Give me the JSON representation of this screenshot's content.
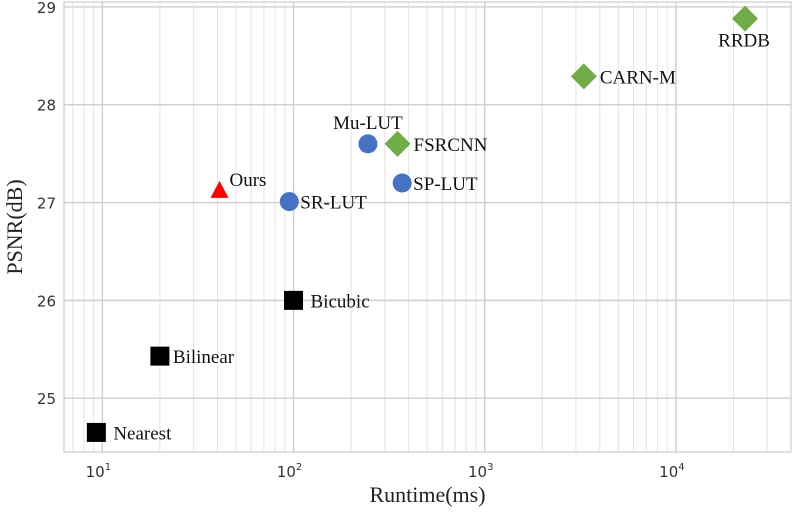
{
  "chart_data": {
    "type": "scatter",
    "title": "",
    "xlabel": "Runtime(ms)",
    "ylabel": "PSNR(dB)",
    "x_scale": "log",
    "xlim": [
      6.3,
      40000
    ],
    "ylim": [
      24.45,
      29.05
    ],
    "grid": true,
    "x_ticks": [
      {
        "base": "10",
        "exp": "1",
        "value": 10
      },
      {
        "base": "10",
        "exp": "2",
        "value": 100
      },
      {
        "base": "10",
        "exp": "3",
        "value": 1000
      },
      {
        "base": "10",
        "exp": "4",
        "value": 10000
      }
    ],
    "y_ticks": [
      "25",
      "26",
      "27",
      "28",
      "29"
    ],
    "points": [
      {
        "label": "Nearest",
        "x": 9.3,
        "y": 24.65,
        "marker": "square",
        "color": "#000000"
      },
      {
        "label": "Bilinear",
        "x": 20,
        "y": 25.43,
        "marker": "square",
        "color": "#000000"
      },
      {
        "label": "Bicubic",
        "x": 100,
        "y": 26.0,
        "marker": "square",
        "color": "#000000"
      },
      {
        "label": "Ours",
        "x": 41,
        "y": 27.13,
        "marker": "triangle",
        "color": "#ff0000"
      },
      {
        "label": "SR-LUT",
        "x": 95,
        "y": 27.01,
        "marker": "circle",
        "color": "#4472c4"
      },
      {
        "label": "Mu-LUT",
        "x": 245,
        "y": 27.6,
        "marker": "circle",
        "color": "#4472c4"
      },
      {
        "label": "SP-LUT",
        "x": 370,
        "y": 27.2,
        "marker": "circle",
        "color": "#4472c4"
      },
      {
        "label": "FSRCNN",
        "x": 350,
        "y": 27.6,
        "marker": "diamond",
        "color": "#70ad47"
      },
      {
        "label": "CARN-M",
        "x": 3300,
        "y": 28.29,
        "marker": "diamond",
        "color": "#70ad47"
      },
      {
        "label": "RRDB",
        "x": 23000,
        "y": 28.88,
        "marker": "diamond",
        "color": "#70ad47"
      }
    ]
  }
}
